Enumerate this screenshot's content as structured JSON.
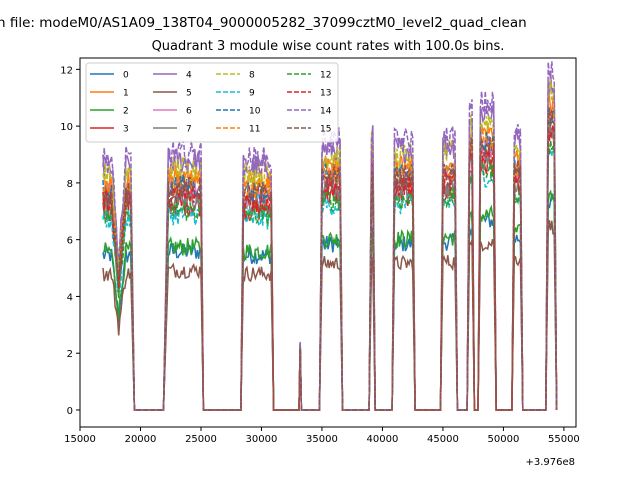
{
  "chart_data": {
    "type": "line",
    "suptitle": "n file: modeM0/AS1A09_138T04_9000005282_37099cztM0_level2_quad_clean",
    "title": "Quadrant 3 module wise count rates with 100.0s bins.",
    "xlabel": "",
    "ylabel": "",
    "x_offset_label": "+3.976e8",
    "xlim": [
      15000,
      56000
    ],
    "ylim": [
      -0.6,
      12.4
    ],
    "xticks": [
      15000,
      20000,
      25000,
      30000,
      35000,
      40000,
      45000,
      50000,
      55000
    ],
    "yticks": [
      0,
      2,
      4,
      6,
      8,
      10,
      12
    ],
    "grid": false,
    "legend": {
      "placement": "top-left",
      "columns": 4
    },
    "time_bin_s": 100,
    "segments": [
      {
        "start": 16900,
        "end": 19200,
        "drop_end": 19500
      },
      {
        "rise_start": 21900,
        "start": 22300,
        "end": 25000,
        "drop_end": 25200
      },
      {
        "rise_start": 28300,
        "start": 28500,
        "end": 30800,
        "drop_end": 31000
      },
      {
        "rise_start": 33100,
        "start": 33200,
        "end": 33200,
        "drop_end": 33300,
        "peak": 2.4
      },
      {
        "rise_start": 34800,
        "start": 35000,
        "end": 36500,
        "drop_end": 36700
      },
      {
        "rise_start": 38900,
        "start": 39100,
        "end": 39200,
        "drop_end": 39400
      },
      {
        "rise_start": 40800,
        "start": 41000,
        "end": 42500,
        "drop_end": 42700
      },
      {
        "rise_start": 44800,
        "start": 45000,
        "end": 46000,
        "drop_end": 46200
      },
      {
        "rise_start": 47000,
        "start": 47200,
        "end": 47400,
        "drop_end": 47600
      },
      {
        "rise_start": 47900,
        "start": 48100,
        "end": 49200,
        "drop_end": 49400
      },
      {
        "rise_start": 50700,
        "start": 50900,
        "end": 51400,
        "drop_end": 51600
      },
      {
        "rise_start": 53500,
        "start": 53700,
        "end": 54200,
        "drop_end": 54400
      }
    ],
    "segment_levels": [
      8.0,
      8.2,
      8.0,
      2.3,
      8.6,
      9.0,
      8.6,
      8.7,
      9.6,
      9.8,
      8.9,
      10.8
    ],
    "series": [
      {
        "name": "0",
        "color": "#1f77b4",
        "dash": "solid",
        "scale": 0.68
      },
      {
        "name": "1",
        "color": "#ff7f0e",
        "dash": "solid",
        "scale": 1.0
      },
      {
        "name": "2",
        "color": "#2ca02c",
        "dash": "solid",
        "scale": 0.7
      },
      {
        "name": "3",
        "color": "#d62728",
        "dash": "solid",
        "scale": 0.88
      },
      {
        "name": "4",
        "color": "#9467bd",
        "dash": "solid",
        "scale": 1.07
      },
      {
        "name": "5",
        "color": "#8c564b",
        "dash": "solid",
        "scale": 0.6
      },
      {
        "name": "6",
        "color": "#e377c2",
        "dash": "solid",
        "scale": 0.94
      },
      {
        "name": "7",
        "color": "#7f7f7f",
        "dash": "solid",
        "scale": 0.9
      },
      {
        "name": "8",
        "color": "#bcbd22",
        "dash": "dashed",
        "scale": 1.04
      },
      {
        "name": "9",
        "color": "#17becf",
        "dash": "dashed",
        "scale": 0.84
      },
      {
        "name": "10",
        "color": "#1f77b4",
        "dash": "dashed",
        "scale": 0.96
      },
      {
        "name": "11",
        "color": "#ff7f0e",
        "dash": "dashed",
        "scale": 0.97
      },
      {
        "name": "12",
        "color": "#2ca02c",
        "dash": "dashed",
        "scale": 0.86
      },
      {
        "name": "13",
        "color": "#d62728",
        "dash": "dashed",
        "scale": 0.92
      },
      {
        "name": "14",
        "color": "#9467bd",
        "dash": "dashed",
        "scale": 1.1
      },
      {
        "name": "15",
        "color": "#8c564b",
        "dash": "dashed",
        "scale": 0.95
      }
    ]
  }
}
